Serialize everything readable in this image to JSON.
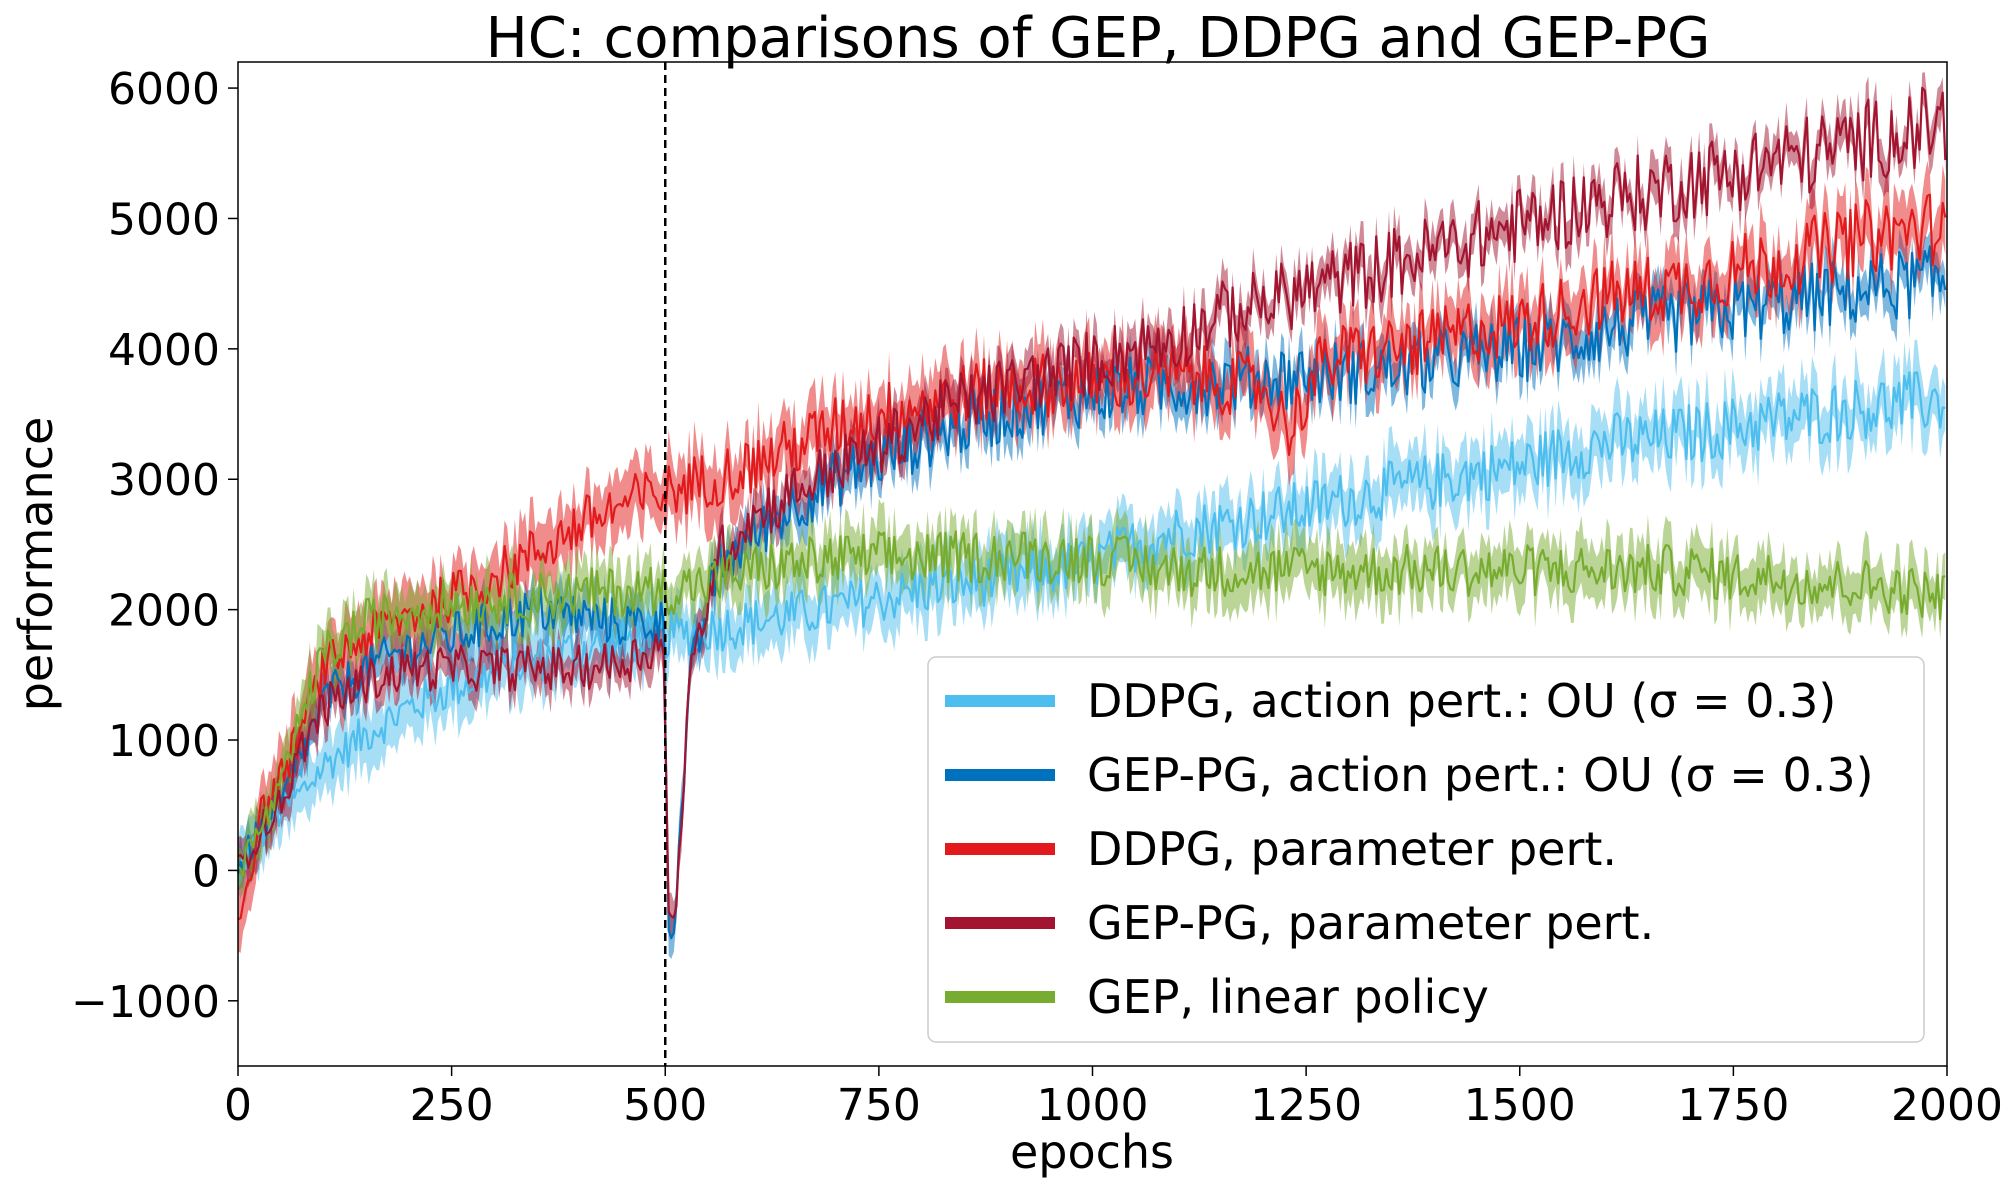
{
  "chart_data": {
    "type": "line",
    "title": "HC: comparisons of GEP, DDPG and GEP-PG",
    "xlabel": "epochs",
    "ylabel": "performance",
    "xlim": [
      0,
      2000
    ],
    "ylim": [
      -1500,
      6200
    ],
    "xticks": [
      0,
      250,
      500,
      750,
      1000,
      1250,
      1500,
      1750,
      2000
    ],
    "xtick_labels": [
      "0",
      "250",
      "500",
      "750",
      "1000",
      "1250",
      "1500",
      "1750",
      "2000"
    ],
    "yticks": [
      -1000,
      0,
      1000,
      2000,
      3000,
      4000,
      5000,
      6000
    ],
    "ytick_labels": [
      "−1000",
      "0",
      "1000",
      "2000",
      "3000",
      "4000",
      "5000",
      "6000"
    ],
    "grid": false,
    "legend_position": "bottom-right",
    "vline": {
      "x": 500,
      "style": "dashed",
      "color": "#000000"
    },
    "series": [
      {
        "name": "DDPG, action pert.: OU (σ = 0.3)",
        "color": "#4DBEEE",
        "x": [
          0,
          25,
          50,
          75,
          100,
          150,
          200,
          250,
          300,
          350,
          400,
          450,
          500,
          550,
          600,
          650,
          700,
          750,
          800,
          850,
          900,
          950,
          1000,
          1050,
          1100,
          1150,
          1200,
          1250,
          1300,
          1350,
          1400,
          1450,
          1500,
          1550,
          1600,
          1650,
          1700,
          1750,
          1800,
          1850,
          1900,
          1950,
          2000
        ],
        "mean": [
          0,
          250,
          450,
          600,
          800,
          1050,
          1250,
          1400,
          1520,
          1620,
          1700,
          1760,
          1800,
          1850,
          1900,
          1960,
          2020,
          2080,
          2150,
          2200,
          2250,
          2300,
          2360,
          2500,
          2600,
          2650,
          2720,
          2780,
          2850,
          2920,
          2980,
          3050,
          3100,
          3200,
          3280,
          3300,
          3350,
          3400,
          3450,
          3500,
          3550,
          3580,
          3600
        ],
        "band": 220
      },
      {
        "name": "GEP-PG, action pert.: OU (σ = 0.3)",
        "color": "#0072BD",
        "x": [
          0,
          25,
          50,
          75,
          100,
          150,
          200,
          250,
          300,
          350,
          400,
          450,
          500,
          502,
          510,
          530,
          560,
          600,
          650,
          700,
          750,
          800,
          850,
          900,
          950,
          1000,
          1050,
          1100,
          1150,
          1200,
          1250,
          1300,
          1350,
          1400,
          1450,
          1500,
          1550,
          1600,
          1650,
          1700,
          1750,
          1800,
          1850,
          1900,
          1950,
          2000
        ],
        "mean": [
          0,
          300,
          500,
          900,
          1300,
          1550,
          1700,
          1800,
          1900,
          2000,
          1950,
          1900,
          1900,
          -300,
          -450,
          1500,
          2300,
          2550,
          2800,
          3000,
          3150,
          3300,
          3420,
          3520,
          3600,
          3650,
          3700,
          3720,
          3750,
          3780,
          3800,
          3820,
          3850,
          3900,
          3950,
          4000,
          4050,
          4150,
          4200,
          4250,
          4300,
          4350,
          4400,
          4450,
          4500,
          4520
        ],
        "band": 160
      },
      {
        "name": "DDPG, parameter pert.",
        "color": "#E31A1C",
        "x": [
          0,
          15,
          25,
          50,
          75,
          100,
          150,
          200,
          250,
          300,
          350,
          400,
          450,
          500,
          550,
          600,
          650,
          700,
          750,
          800,
          850,
          900,
          950,
          1000,
          1050,
          1100,
          1150,
          1200,
          1230,
          1250,
          1270,
          1300,
          1350,
          1400,
          1450,
          1500,
          1550,
          1600,
          1650,
          1700,
          1750,
          1800,
          1850,
          1900,
          1950,
          2000
        ],
        "mean": [
          -350,
          0,
          400,
          700,
          1100,
          1550,
          1800,
          1950,
          2100,
          2250,
          2450,
          2650,
          2800,
          2900,
          3000,
          3100,
          3250,
          3400,
          3500,
          3580,
          3650,
          3700,
          3730,
          3750,
          3780,
          3800,
          3750,
          3700,
          3400,
          3650,
          3900,
          3950,
          4000,
          4050,
          4150,
          4200,
          4300,
          4400,
          4450,
          4500,
          4600,
          4650,
          4750,
          4850,
          4900,
          4950
        ],
        "band": 230
      },
      {
        "name": "GEP-PG, parameter pert.",
        "color": "#A2142F",
        "x": [
          0,
          25,
          50,
          75,
          100,
          150,
          200,
          250,
          300,
          350,
          400,
          450,
          500,
          502,
          510,
          530,
          560,
          600,
          650,
          700,
          750,
          800,
          850,
          900,
          950,
          1000,
          1050,
          1100,
          1150,
          1200,
          1250,
          1300,
          1350,
          1400,
          1450,
          1500,
          1550,
          1600,
          1650,
          1700,
          1750,
          1800,
          1850,
          1900,
          1950,
          2000
        ],
        "mean": [
          0,
          300,
          500,
          950,
          1250,
          1450,
          1550,
          1550,
          1550,
          1550,
          1550,
          1600,
          1750,
          -350,
          -450,
          1500,
          2400,
          2700,
          2900,
          3100,
          3250,
          3450,
          3600,
          3700,
          3800,
          3900,
          4000,
          4100,
          4250,
          4350,
          4450,
          4550,
          4650,
          4750,
          4850,
          4950,
          5050,
          5150,
          5200,
          5300,
          5350,
          5450,
          5500,
          5600,
          5650,
          5750
        ],
        "band": 150
      },
      {
        "name": "GEP, linear policy",
        "color": "#77AC30",
        "x": [
          0,
          25,
          50,
          75,
          100,
          150,
          200,
          250,
          300,
          350,
          400,
          450,
          500,
          550,
          600,
          650,
          700,
          750,
          800,
          850,
          900,
          950,
          1000,
          1050,
          1100,
          1150,
          1200,
          1250,
          1300,
          1350,
          1400,
          1450,
          1500,
          1550,
          1600,
          1650,
          1700,
          1750,
          1800,
          1850,
          1900,
          1950,
          2000
        ],
        "mean": [
          0,
          300,
          600,
          1200,
          1650,
          1900,
          2000,
          2050,
          2080,
          2100,
          2120,
          2140,
          2150,
          2200,
          2300,
          2350,
          2380,
          2400,
          2400,
          2400,
          2420,
          2400,
          2400,
          2350,
          2300,
          2300,
          2300,
          2300,
          2300,
          2300,
          2300,
          2300,
          2300,
          2300,
          2300,
          2300,
          2300,
          2250,
          2250,
          2200,
          2200,
          2150,
          2100
        ],
        "band": 200
      }
    ],
    "legend": {
      "entries": [
        "DDPG, action pert.: OU (σ = 0.3)",
        "GEP-PG, action pert.: OU (σ = 0.3)",
        "DDPG, parameter pert.",
        "GEP-PG, parameter pert.",
        "GEP, linear policy"
      ]
    }
  }
}
